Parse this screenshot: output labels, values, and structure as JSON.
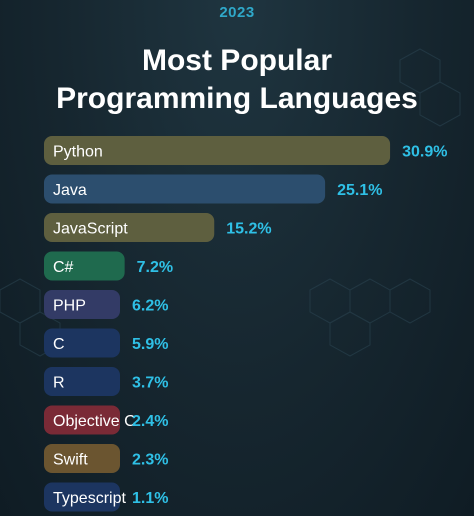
{
  "year": "2023",
  "title_line1": "Most Popular",
  "title_line2": "Programming Languages",
  "chart_data": {
    "type": "bar",
    "orientation": "horizontal",
    "title": "Most Popular Programming Languages",
    "categories": [
      "Python",
      "Java",
      "JavaScript",
      "C#",
      "PHP",
      "C",
      "R",
      "Objective C",
      "Swift",
      "Typescript"
    ],
    "values": [
      30.9,
      25.1,
      15.2,
      7.2,
      6.2,
      5.9,
      3.7,
      2.4,
      2.3,
      1.1
    ],
    "value_labels": [
      "30.9%",
      "25.1%",
      "15.2%",
      "7.2%",
      "6.2%",
      "5.9%",
      "3.7%",
      "2.4%",
      "2.3%",
      "1.1%"
    ],
    "colors": [
      "#5e5f3f",
      "#2c4e6e",
      "#5e5f3f",
      "#1f6a4e",
      "#333b66",
      "#1c3560",
      "#1c3560",
      "#7a2a36",
      "#6b5530",
      "#1c3560"
    ],
    "value_label_color": "#2fc0e6",
    "grid": false,
    "legend": "none"
  }
}
